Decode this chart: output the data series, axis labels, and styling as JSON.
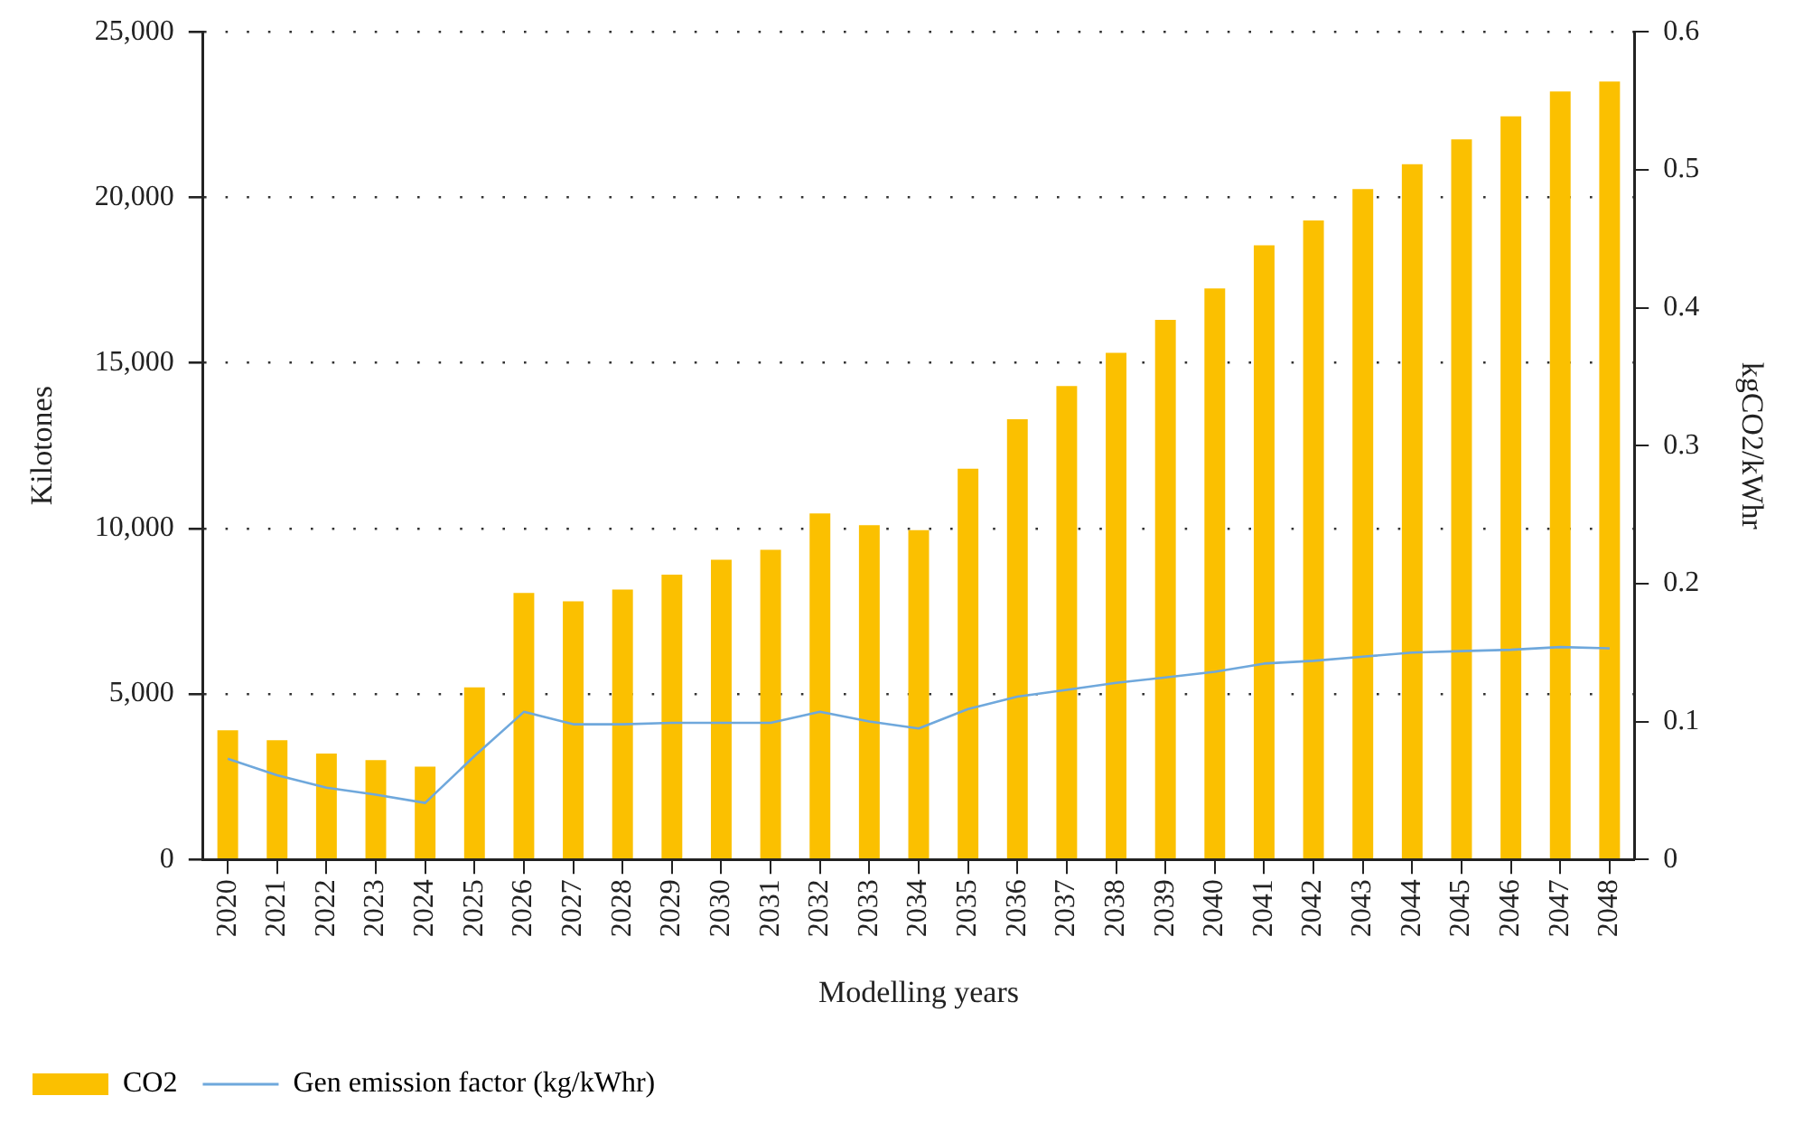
{
  "chart_data": {
    "type": "bar",
    "xlabel": "Modelling years",
    "ylabel": "Kilotones",
    "y2label": "kgCO2/kWhr",
    "categories": [
      "2020",
      "2021",
      "2022",
      "2023",
      "2024",
      "2025",
      "2026",
      "2027",
      "2028",
      "2029",
      "2030",
      "2031",
      "2032",
      "2033",
      "2034",
      "2035",
      "2036",
      "2037",
      "2038",
      "2039",
      "2040",
      "2041",
      "2042",
      "2043",
      "2044",
      "2045",
      "2046",
      "2047",
      "2048"
    ],
    "series": [
      {
        "name": "CO2",
        "type": "bar",
        "color": "#fbc000",
        "values": [
          3900,
          3600,
          3200,
          3000,
          2800,
          5200,
          8050,
          7800,
          8150,
          8600,
          9050,
          9350,
          10450,
          10100,
          9950,
          11800,
          13300,
          14300,
          15300,
          16300,
          17250,
          18550,
          19300,
          20250,
          21000,
          21750,
          22450,
          23200,
          23500
        ]
      },
      {
        "name": "Gen emission factor (kg/kWhr)",
        "type": "line",
        "axis": "y2",
        "color": "#6fa8dc",
        "values": [
          0.073,
          0.061,
          0.052,
          0.047,
          0.041,
          0.075,
          0.107,
          0.098,
          0.098,
          0.099,
          0.099,
          0.099,
          0.107,
          0.1,
          0.095,
          0.109,
          0.118,
          0.123,
          0.128,
          0.132,
          0.136,
          0.142,
          0.144,
          0.147,
          0.15,
          0.151,
          0.152,
          0.154,
          0.153
        ]
      }
    ],
    "ylim": [
      0,
      25000
    ],
    "yticks": [
      0,
      {
        "value": 5000,
        "label": "5,000"
      },
      {
        "value": 10000,
        "label": "10,000"
      },
      {
        "value": 15000,
        "label": "15,000"
      },
      {
        "value": 20000,
        "label": "20,000"
      },
      {
        "value": 25000,
        "label": "25,000"
      }
    ],
    "y2lim": [
      0,
      0.6
    ],
    "y2ticks": [
      0,
      0.1,
      0.2,
      0.3,
      0.4,
      0.5,
      0.6
    ],
    "grid": "y",
    "legend": "bottom left",
    "marker": "none",
    "line_style": "solid"
  }
}
